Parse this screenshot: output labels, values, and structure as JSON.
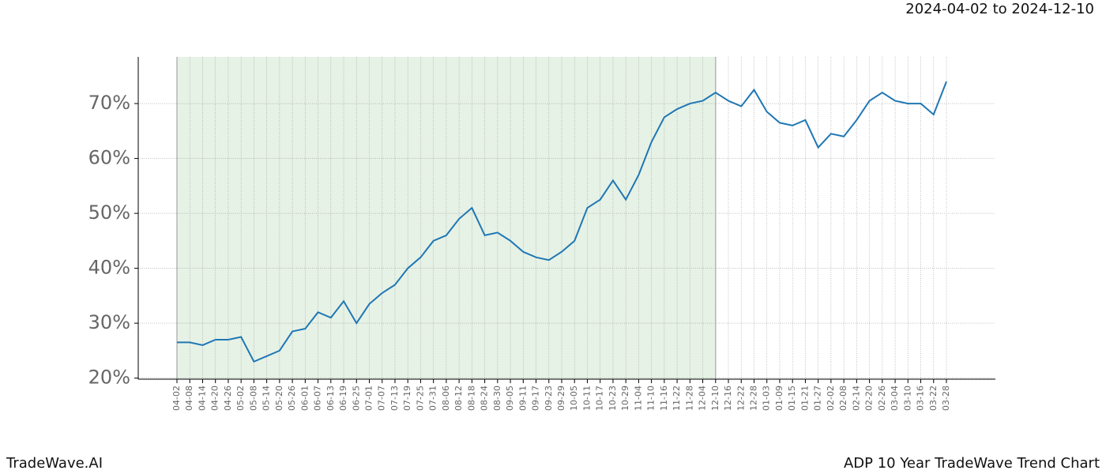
{
  "chart_data": {
    "type": "line",
    "header": "2024-04-02 to 2024-12-10",
    "footer_left": "TradeWave.AI",
    "footer_right": "ADP 10 Year TradeWave Trend Chart",
    "categories": [
      "04-02",
      "04-08",
      "04-14",
      "04-20",
      "04-26",
      "05-02",
      "05-08",
      "05-14",
      "05-20",
      "05-26",
      "06-01",
      "06-07",
      "06-13",
      "06-19",
      "06-25",
      "07-01",
      "07-07",
      "07-13",
      "07-19",
      "07-25",
      "07-31",
      "08-06",
      "08-12",
      "08-18",
      "08-24",
      "08-30",
      "09-05",
      "09-11",
      "09-17",
      "09-23",
      "09-29",
      "10-05",
      "10-11",
      "10-17",
      "10-23",
      "10-29",
      "11-04",
      "11-10",
      "11-16",
      "11-22",
      "11-28",
      "12-04",
      "12-10",
      "12-16",
      "12-22",
      "12-28",
      "01-03",
      "01-09",
      "01-15",
      "01-21",
      "01-27",
      "02-02",
      "02-08",
      "02-14",
      "02-20",
      "02-26",
      "03-04",
      "03-10",
      "03-16",
      "03-22",
      "03-28"
    ],
    "series": [
      {
        "color": "#1f77b4",
        "values": [
          26.5,
          26.5,
          26,
          27,
          27,
          27.5,
          23,
          24,
          25,
          28.5,
          29,
          32,
          31,
          34,
          30,
          33.5,
          35.5,
          37,
          40,
          42,
          45,
          46,
          49,
          51,
          46,
          46.5,
          45,
          43,
          42,
          41.5,
          43,
          45,
          51,
          52.5,
          56,
          52.5,
          57,
          63,
          67.5,
          69,
          70,
          70.5,
          72,
          70.5,
          69.5,
          72.5,
          68.5,
          66.5,
          66,
          67,
          62,
          64.5,
          64,
          67,
          70.5,
          72,
          70.5,
          70,
          70,
          68,
          74
        ]
      }
    ],
    "shade": {
      "from": "04-02",
      "to": "12-10",
      "color": "#e6f2e6"
    },
    "ylim": [
      19.8,
      78.5
    ],
    "yticks": [
      {
        "value": 20,
        "label": "20%"
      },
      {
        "value": 30,
        "label": "30%"
      },
      {
        "value": 40,
        "label": "40%"
      },
      {
        "value": 50,
        "label": "50%"
      },
      {
        "value": 60,
        "label": "60%"
      },
      {
        "value": 70,
        "label": "70%"
      }
    ],
    "grid": true
  }
}
